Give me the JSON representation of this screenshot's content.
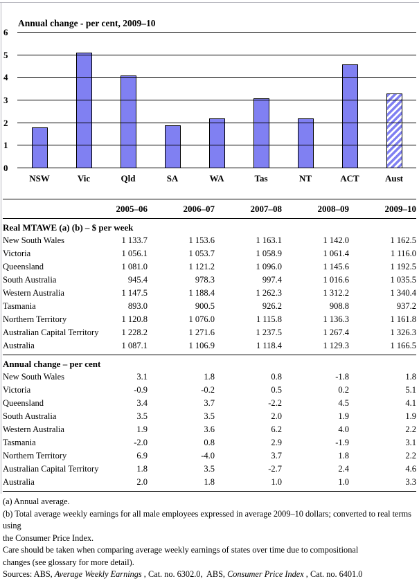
{
  "chart_data": {
    "type": "bar",
    "title": "Annual change - per cent, 2009–10",
    "categories": [
      "NSW",
      "Vic",
      "Qld",
      "SA",
      "WA",
      "Tas",
      "NT",
      "ACT",
      "Aust"
    ],
    "values": [
      1.8,
      5.1,
      4.1,
      1.9,
      2.2,
      3.1,
      2.2,
      4.6,
      3.3
    ],
    "ylim": [
      0,
      6
    ],
    "yticks": [
      0,
      1,
      2,
      3,
      4,
      5,
      6
    ],
    "grid": true,
    "legend": "none",
    "bar_fill_color": "#8080f2",
    "bar_border_color": "#000000",
    "hatched_category": "Aust",
    "hatch_style": "white with diagonal blue stripes"
  },
  "table": {
    "col_headers": [
      "2005–06",
      "2006–07",
      "2007–08",
      "2008–09",
      "2009–10"
    ],
    "sections": [
      {
        "heading": "Real MTAWE (a) (b) – $ per week",
        "rows": [
          {
            "label": "New South Wales",
            "values": [
              "1 133.7",
              "1 153.6",
              "1 163.1",
              "1 142.0",
              "1 162.5"
            ]
          },
          {
            "label": "Victoria",
            "values": [
              "1 056.1",
              "1 053.7",
              "1 058.9",
              "1 061.4",
              "1 116.0"
            ]
          },
          {
            "label": "Queensland",
            "values": [
              "1 081.0",
              "1 121.2",
              "1 096.0",
              "1 145.6",
              "1 192.5"
            ]
          },
          {
            "label": "South Australia",
            "values": [
              "945.4",
              "978.3",
              "997.4",
              "1 016.6",
              "1 035.5"
            ]
          },
          {
            "label": "Western Australia",
            "values": [
              "1 147.5",
              "1 188.4",
              "1 262.3",
              "1 312.2",
              "1 340.4"
            ]
          },
          {
            "label": "Tasmania",
            "values": [
              "893.0",
              "900.5",
              "926.2",
              "908.8",
              "937.2"
            ]
          },
          {
            "label": "Northern Territory",
            "values": [
              "1 120.8",
              "1 076.0",
              "1 115.8",
              "1 136.3",
              "1 161.8"
            ]
          },
          {
            "label": "Australian Capital Territory",
            "values": [
              "1 228.2",
              "1 271.6",
              "1 237.5",
              "1 267.4",
              "1 326.3"
            ]
          },
          {
            "label": "Australia",
            "values": [
              "1 087.1",
              "1 106.9",
              "1 118.4",
              "1 129.3",
              "1 166.5"
            ]
          }
        ]
      },
      {
        "heading": "Annual change – per cent",
        "rows": [
          {
            "label": "New South Wales",
            "values": [
              "3.1",
              "1.8",
              "0.8",
              "-1.8",
              "1.8"
            ]
          },
          {
            "label": "Victoria",
            "values": [
              "-0.9",
              "-0.2",
              "0.5",
              "0.2",
              "5.1"
            ]
          },
          {
            "label": "Queensland",
            "values": [
              "3.4",
              "3.7",
              "-2.2",
              "4.5",
              "4.1"
            ]
          },
          {
            "label": "South Australia",
            "values": [
              "3.5",
              "3.5",
              "2.0",
              "1.9",
              "1.9"
            ]
          },
          {
            "label": "Western Australia",
            "values": [
              "1.9",
              "3.6",
              "6.2",
              "4.0",
              "2.2"
            ]
          },
          {
            "label": "Tasmania",
            "values": [
              "-2.0",
              "0.8",
              "2.9",
              "-1.9",
              "3.1"
            ]
          },
          {
            "label": "Northern Territory",
            "values": [
              "6.9",
              "-4.0",
              "3.7",
              "1.8",
              "2.2"
            ]
          },
          {
            "label": "Australian Capital Territory",
            "values": [
              "1.8",
              "3.5",
              "-2.7",
              "2.4",
              "4.6"
            ]
          },
          {
            "label": "Australia",
            "values": [
              "2.0",
              "1.8",
              "1.0",
              "1.0",
              "3.3"
            ]
          }
        ]
      }
    ]
  },
  "footnotes": {
    "lines": [
      "(a) Annual average.",
      "(b) Total average weekly earnings for all male employees expressed in average 2009–10 dollars; converted to real terms using",
      "the Consumer Price Index.",
      "Care should be taken when comparing average weekly earnings of states over time due to compositional",
      "changes (see glossary for more detail)."
    ],
    "sources": {
      "prefix": "Sources: ABS, ",
      "title1": "Average Weekly Earnings",
      "mid": " , Cat. no. 6302.0,  ABS, ",
      "title2": "Consumer Price Index",
      "suffix": " , Cat. no. 6401.0"
    }
  }
}
